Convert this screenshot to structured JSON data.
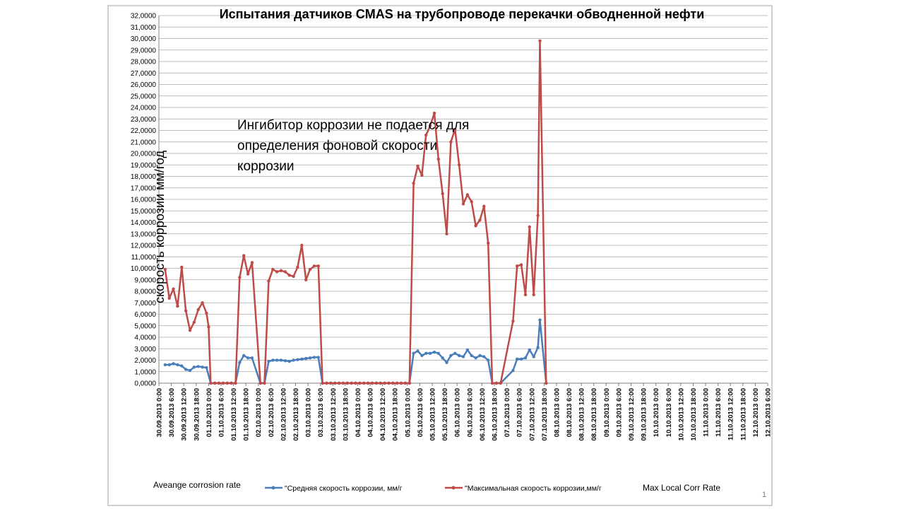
{
  "slide": {
    "page_number": "1"
  },
  "labels": {
    "left_legend_note": "Aveange corrosion rate",
    "right_legend_note": "Max Local Corr Rate"
  },
  "annotation": {
    "lines": [
      "Ингибитор коррозии  не подается для",
      "определения фоновой скорости",
      "коррозии"
    ]
  },
  "colors": {
    "avg": "#4a7ebb",
    "max": "#be4b48",
    "grid": "#a6a6a6",
    "frame": "#a0a0a0"
  },
  "chart_data": {
    "type": "line",
    "title": "Испытания датчиков CMAS на  трубопроводе  перекачки  обводненной нефти",
    "ylabel": "скорость коррозии мм/год",
    "xlabel": "",
    "ylim": [
      0,
      32
    ],
    "y_ticks": [
      "0,0000",
      "1,0000",
      "2,0000",
      "3,0000",
      "4,0000",
      "5,0000",
      "6,0000",
      "7,0000",
      "8,0000",
      "9,0000",
      "10,0000",
      "11,0000",
      "12,0000",
      "13,0000",
      "14,0000",
      "15,0000",
      "16,0000",
      "17,0000",
      "18,0000",
      "19,0000",
      "20,0000",
      "21,0000",
      "22,0000",
      "23,0000",
      "24,0000",
      "25,0000",
      "26,0000",
      "27,0000",
      "28,0000",
      "29,0000",
      "30,0000",
      "31,0000",
      "32,0000"
    ],
    "x_ticks": [
      "30.09.2013 0:00",
      "30.09.2013 6:00",
      "30.09.2013 12:00",
      "30.09.2013 18:00",
      "01.10.2013 0:00",
      "01.10.2013 6:00",
      "01.10.2013 12:00",
      "01.10.2013 18:00",
      "02.10.2013 0:00",
      "02.10.2013 6:00",
      "02.10.2013 12:00",
      "02.10.2013 18:00",
      "03.10.2013 0:00",
      "03.10.2013 6:00",
      "03.10.2013 12:00",
      "03.10.2013 18:00",
      "04.10.2013 0:00",
      "04.10.2013 6:00",
      "04.10.2013 12:00",
      "04.10.2013 18:00",
      "05.10.2013 0:00",
      "05.10.2013 6:00",
      "05.10.2013 12:00",
      "05.10.2013 18:00",
      "06.10.2013 0:00",
      "06.10.2013 6:00",
      "06.10.2013 12:00",
      "06.10.2013 18:00",
      "07.10.2013 0:00",
      "07.10.2013 6:00",
      "07.10.2013 12:00",
      "07.10.2013 18:00",
      "08.10.2013 0:00",
      "08.10.2013 6:00",
      "08.10.2013 12:00",
      "08.10.2013 18:00",
      "09.10.2013 0:00",
      "09.10.2013 6:00",
      "09.10.2013 12:00",
      "09.10.2013 18:00",
      "10.10.2013 0:00",
      "10.10.2013 6:00",
      "10.10.2013 12:00",
      "10.10.2013 18:00",
      "11.10.2013 0:00",
      "11.10.2013 6:00",
      "11.10.2013 12:00",
      "11.10.2013 18:00",
      "12.10.2013 0:00",
      "12.10.2013 6:00"
    ],
    "grid": true,
    "legend_position": "bottom",
    "series": [
      {
        "name": "\"Средняя скорость коррозии, мм/г",
        "color": "#4a7ebb",
        "points": [
          [
            "30.09.2013 3:00",
            1.6
          ],
          [
            "30.09.2013 5:00",
            1.6
          ],
          [
            "30.09.2013 7:00",
            1.7
          ],
          [
            "30.09.2013 9:00",
            1.6
          ],
          [
            "30.09.2013 11:00",
            1.5
          ],
          [
            "30.09.2013 13:00",
            1.2
          ],
          [
            "30.09.2013 15:00",
            1.1
          ],
          [
            "30.09.2013 17:00",
            1.4
          ],
          [
            "30.09.2013 19:00",
            1.45
          ],
          [
            "30.09.2013 21:00",
            1.4
          ],
          [
            "30.09.2013 23:00",
            1.35
          ],
          [
            "01.10.2013 1:00",
            0
          ],
          [
            "01.10.2013 3:00",
            0
          ],
          [
            "01.10.2013 5:00",
            0
          ],
          [
            "01.10.2013 7:00",
            0
          ],
          [
            "01.10.2013 9:00",
            0
          ],
          [
            "01.10.2013 11:00",
            0
          ],
          [
            "01.10.2013 13:00",
            0
          ],
          [
            "01.10.2013 15:00",
            1.8
          ],
          [
            "01.10.2013 17:00",
            2.4
          ],
          [
            "01.10.2013 19:00",
            2.2
          ],
          [
            "01.10.2013 21:00",
            2.2
          ],
          [
            "02.10.2013 1:00",
            0
          ],
          [
            "02.10.2013 3:00",
            0
          ],
          [
            "02.10.2013 5:00",
            1.9
          ],
          [
            "02.10.2013 7:00",
            2.0
          ],
          [
            "02.10.2013 9:00",
            2.0
          ],
          [
            "02.10.2013 11:00",
            2.0
          ],
          [
            "02.10.2013 13:00",
            1.95
          ],
          [
            "02.10.2013 15:00",
            1.9
          ],
          [
            "02.10.2013 17:00",
            2.0
          ],
          [
            "02.10.2013 19:00",
            2.05
          ],
          [
            "02.10.2013 21:00",
            2.1
          ],
          [
            "02.10.2013 23:00",
            2.15
          ],
          [
            "03.10.2013 1:00",
            2.2
          ],
          [
            "03.10.2013 3:00",
            2.25
          ],
          [
            "03.10.2013 5:00",
            2.25
          ],
          [
            "03.10.2013 7:00",
            0
          ],
          [
            "03.10.2013 9:00",
            0
          ],
          [
            "03.10.2013 11:00",
            0
          ],
          [
            "03.10.2013 13:00",
            0
          ],
          [
            "03.10.2013 15:00",
            0
          ],
          [
            "03.10.2013 17:00",
            0
          ],
          [
            "03.10.2013 19:00",
            0
          ],
          [
            "03.10.2013 21:00",
            0
          ],
          [
            "03.10.2013 23:00",
            0
          ],
          [
            "04.10.2013 1:00",
            0
          ],
          [
            "04.10.2013 3:00",
            0
          ],
          [
            "04.10.2013 5:00",
            0
          ],
          [
            "04.10.2013 7:00",
            0
          ],
          [
            "04.10.2013 9:00",
            0
          ],
          [
            "04.10.2013 11:00",
            0
          ],
          [
            "04.10.2013 13:00",
            0
          ],
          [
            "04.10.2013 15:00",
            0
          ],
          [
            "04.10.2013 17:00",
            0
          ],
          [
            "04.10.2013 19:00",
            0
          ],
          [
            "04.10.2013 21:00",
            0
          ],
          [
            "04.10.2013 23:00",
            0
          ],
          [
            "05.10.2013 1:00",
            0
          ],
          [
            "05.10.2013 3:00",
            2.6
          ],
          [
            "05.10.2013 5:00",
            2.8
          ],
          [
            "05.10.2013 7:00",
            2.4
          ],
          [
            "05.10.2013 9:00",
            2.6
          ],
          [
            "05.10.2013 11:00",
            2.6
          ],
          [
            "05.10.2013 13:00",
            2.7
          ],
          [
            "05.10.2013 15:00",
            2.6
          ],
          [
            "05.10.2013 17:00",
            2.2
          ],
          [
            "05.10.2013 19:00",
            1.8
          ],
          [
            "05.10.2013 21:00",
            2.4
          ],
          [
            "05.10.2013 23:00",
            2.6
          ],
          [
            "06.10.2013 1:00",
            2.4
          ],
          [
            "06.10.2013 3:00",
            2.3
          ],
          [
            "06.10.2013 5:00",
            2.9
          ],
          [
            "06.10.2013 7:00",
            2.4
          ],
          [
            "06.10.2013 9:00",
            2.2
          ],
          [
            "06.10.2013 11:00",
            2.4
          ],
          [
            "06.10.2013 13:00",
            2.3
          ],
          [
            "06.10.2013 15:00",
            2.0
          ],
          [
            "06.10.2013 17:00",
            0
          ],
          [
            "06.10.2013 19:00",
            0
          ],
          [
            "06.10.2013 21:00",
            0
          ],
          [
            "07.10.2013 3:00",
            1.1
          ],
          [
            "07.10.2013 5:00",
            2.1
          ],
          [
            "07.10.2013 7:00",
            2.1
          ],
          [
            "07.10.2013 9:00",
            2.2
          ],
          [
            "07.10.2013 11:00",
            2.9
          ],
          [
            "07.10.2013 13:00",
            2.3
          ],
          [
            "07.10.2013 15:00",
            3.1
          ],
          [
            "07.10.2013 16:00",
            5.5
          ],
          [
            "07.10.2013 19:00",
            0
          ]
        ]
      },
      {
        "name": "\"Максимальная скорость коррозии,мм/г",
        "color": "#be4b48",
        "points": [
          [
            "30.09.2013 3:00",
            9.9
          ],
          [
            "30.09.2013 5:00",
            7.4
          ],
          [
            "30.09.2013 7:00",
            8.2
          ],
          [
            "30.09.2013 9:00",
            6.7
          ],
          [
            "30.09.2013 11:00",
            10.1
          ],
          [
            "30.09.2013 13:00",
            6.3
          ],
          [
            "30.09.2013 15:00",
            4.6
          ],
          [
            "30.09.2013 17:00",
            5.3
          ],
          [
            "30.09.2013 19:00",
            6.4
          ],
          [
            "30.09.2013 21:00",
            7.0
          ],
          [
            "30.09.2013 23:00",
            6.1
          ],
          [
            "01.10.2013 0:00",
            4.9
          ],
          [
            "01.10.2013 1:00",
            0
          ],
          [
            "01.10.2013 3:00",
            0
          ],
          [
            "01.10.2013 5:00",
            0
          ],
          [
            "01.10.2013 7:00",
            0
          ],
          [
            "01.10.2013 9:00",
            0
          ],
          [
            "01.10.2013 11:00",
            0
          ],
          [
            "01.10.2013 13:00",
            0
          ],
          [
            "01.10.2013 15:00",
            9.2
          ],
          [
            "01.10.2013 17:00",
            11.1
          ],
          [
            "01.10.2013 19:00",
            9.5
          ],
          [
            "01.10.2013 21:00",
            10.5
          ],
          [
            "02.10.2013 1:00",
            0
          ],
          [
            "02.10.2013 3:00",
            0
          ],
          [
            "02.10.2013 5:00",
            8.9
          ],
          [
            "02.10.2013 7:00",
            9.9
          ],
          [
            "02.10.2013 9:00",
            9.7
          ],
          [
            "02.10.2013 11:00",
            9.8
          ],
          [
            "02.10.2013 13:00",
            9.7
          ],
          [
            "02.10.2013 15:00",
            9.4
          ],
          [
            "02.10.2013 17:00",
            9.3
          ],
          [
            "02.10.2013 19:00",
            10.1
          ],
          [
            "02.10.2013 21:00",
            12.0
          ],
          [
            "02.10.2013 23:00",
            9.0
          ],
          [
            "03.10.2013 1:00",
            9.9
          ],
          [
            "03.10.2013 3:00",
            10.2
          ],
          [
            "03.10.2013 5:00",
            10.2
          ],
          [
            "03.10.2013 7:00",
            0
          ],
          [
            "03.10.2013 9:00",
            0
          ],
          [
            "03.10.2013 11:00",
            0
          ],
          [
            "03.10.2013 13:00",
            0
          ],
          [
            "03.10.2013 15:00",
            0
          ],
          [
            "03.10.2013 17:00",
            0
          ],
          [
            "03.10.2013 19:00",
            0
          ],
          [
            "03.10.2013 21:00",
            0
          ],
          [
            "03.10.2013 23:00",
            0
          ],
          [
            "04.10.2013 1:00",
            0
          ],
          [
            "04.10.2013 3:00",
            0
          ],
          [
            "04.10.2013 5:00",
            0
          ],
          [
            "04.10.2013 7:00",
            0
          ],
          [
            "04.10.2013 9:00",
            0
          ],
          [
            "04.10.2013 11:00",
            0
          ],
          [
            "04.10.2013 13:00",
            0
          ],
          [
            "04.10.2013 15:00",
            0
          ],
          [
            "04.10.2013 17:00",
            0
          ],
          [
            "04.10.2013 19:00",
            0
          ],
          [
            "04.10.2013 21:00",
            0
          ],
          [
            "04.10.2013 23:00",
            0
          ],
          [
            "05.10.2013 1:00",
            0
          ],
          [
            "05.10.2013 3:00",
            17.4
          ],
          [
            "05.10.2013 5:00",
            18.9
          ],
          [
            "05.10.2013 7:00",
            18.1
          ],
          [
            "05.10.2013 9:00",
            21.6
          ],
          [
            "05.10.2013 11:00",
            22.4
          ],
          [
            "05.10.2013 13:00",
            23.5
          ],
          [
            "05.10.2013 15:00",
            19.5
          ],
          [
            "05.10.2013 17:00",
            16.5
          ],
          [
            "05.10.2013 19:00",
            13.0
          ],
          [
            "05.10.2013 21:00",
            21.0
          ],
          [
            "05.10.2013 23:00",
            22.1
          ],
          [
            "06.10.2013 1:00",
            19.0
          ],
          [
            "06.10.2013 3:00",
            15.6
          ],
          [
            "06.10.2013 5:00",
            16.4
          ],
          [
            "06.10.2013 7:00",
            15.8
          ],
          [
            "06.10.2013 9:00",
            13.7
          ],
          [
            "06.10.2013 11:00",
            14.2
          ],
          [
            "06.10.2013 13:00",
            15.4
          ],
          [
            "06.10.2013 15:00",
            12.2
          ],
          [
            "06.10.2013 17:00",
            0
          ],
          [
            "06.10.2013 19:00",
            0
          ],
          [
            "06.10.2013 21:00",
            0
          ],
          [
            "07.10.2013 3:00",
            5.4
          ],
          [
            "07.10.2013 5:00",
            10.2
          ],
          [
            "07.10.2013 7:00",
            10.3
          ],
          [
            "07.10.2013 9:00",
            7.7
          ],
          [
            "07.10.2013 11:00",
            13.6
          ],
          [
            "07.10.2013 13:00",
            7.7
          ],
          [
            "07.10.2013 15:00",
            14.6
          ],
          [
            "07.10.2013 16:00",
            29.8
          ],
          [
            "07.10.2013 19:00",
            0
          ]
        ]
      }
    ]
  }
}
